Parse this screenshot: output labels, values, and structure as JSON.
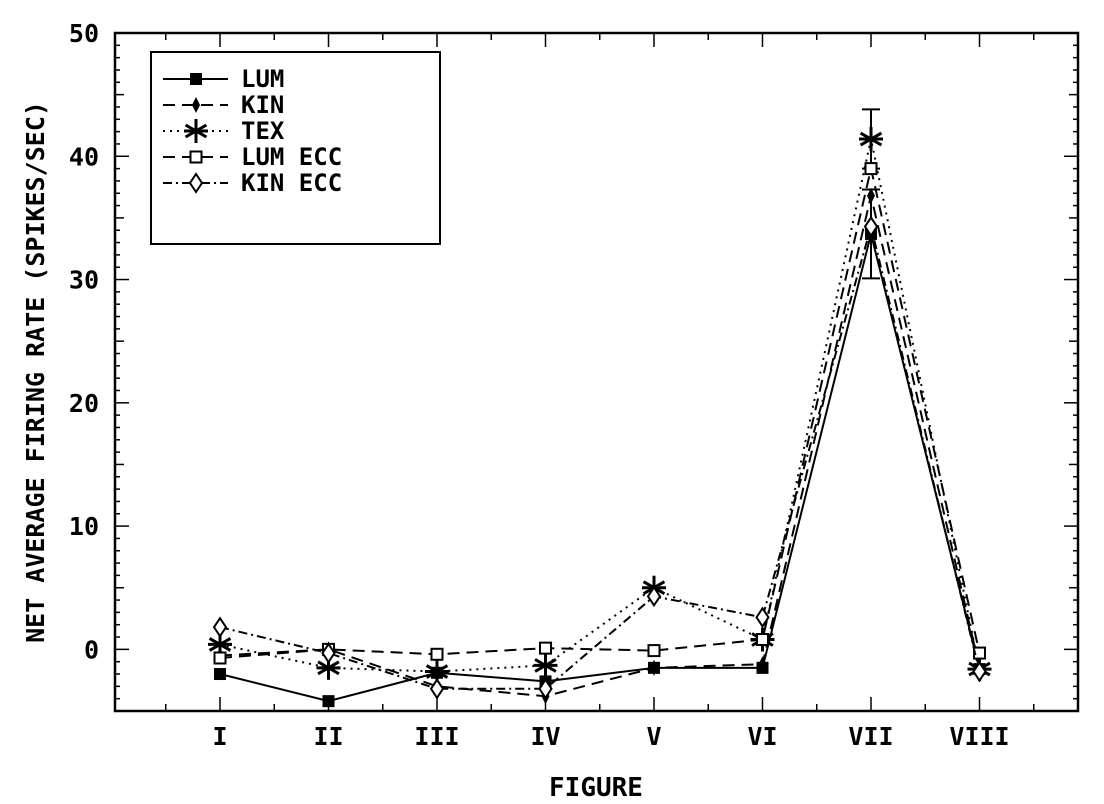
{
  "chart_data": {
    "type": "line",
    "title": "",
    "xlabel": "FIGURE",
    "ylabel": "NET AVERAGE FIRING RATE (SPIKES/SEC)",
    "categories": [
      "I",
      "II",
      "III",
      "IV",
      "V",
      "VI",
      "VII",
      "VIII"
    ],
    "ylim": [
      -5,
      50
    ],
    "yticks": [
      0,
      10,
      20,
      30,
      40,
      50
    ],
    "grid": false,
    "legend_position": "top-left",
    "series": [
      {
        "name": "LUM",
        "marker": "filled-square",
        "dash": "solid",
        "values": [
          -2.0,
          -4.2,
          -1.9,
          -2.6,
          -1.5,
          -1.5,
          33.7,
          -1.6
        ],
        "error": [
          null,
          null,
          null,
          null,
          null,
          null,
          3.6,
          null
        ]
      },
      {
        "name": "KIN",
        "marker": "small-filled-diamond",
        "dash": "dashed",
        "values": [
          -0.5,
          0.0,
          -3.0,
          -3.8,
          -1.5,
          -1.2,
          36.8,
          -1.5
        ],
        "error": [
          null,
          null,
          null,
          null,
          null,
          null,
          null,
          null
        ]
      },
      {
        "name": "TEX",
        "marker": "asterisk",
        "dash": "dotted",
        "values": [
          0.4,
          -1.5,
          -1.8,
          -1.3,
          5.0,
          0.8,
          41.4,
          -1.6
        ],
        "error": [
          null,
          null,
          null,
          null,
          null,
          null,
          2.4,
          null
        ]
      },
      {
        "name": "LUM ECC",
        "marker": "open-square",
        "dash": "dashed",
        "values": [
          -0.7,
          0.0,
          -0.4,
          0.1,
          -0.1,
          0.8,
          39.0,
          -0.3
        ],
        "error": [
          null,
          null,
          null,
          null,
          null,
          null,
          null,
          null
        ]
      },
      {
        "name": "KIN ECC",
        "marker": "open-diamond",
        "dash": "dash-dot",
        "values": [
          1.8,
          -0.3,
          -3.2,
          -3.2,
          4.3,
          2.6,
          34.3,
          -1.8
        ],
        "error": [
          null,
          null,
          null,
          null,
          null,
          null,
          null,
          null
        ]
      }
    ]
  }
}
